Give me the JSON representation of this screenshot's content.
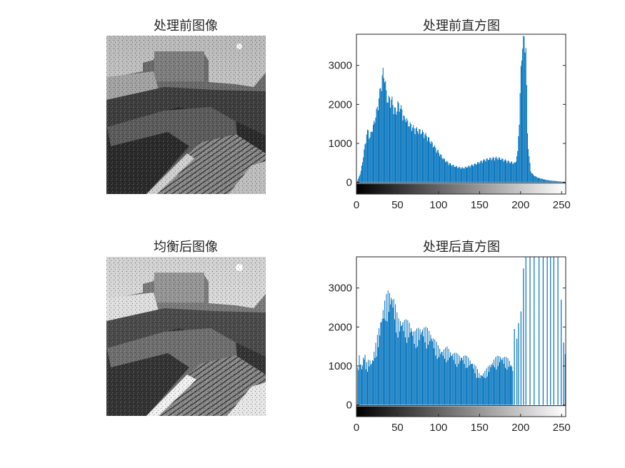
{
  "colors": {
    "bar": "#0072BD",
    "axis": "#262626",
    "background": "#ffffff"
  },
  "panels": {
    "original_image": {
      "title": "处理前图像"
    },
    "equalized_image": {
      "title": "均衡后图像"
    }
  },
  "chart_data": [
    {
      "type": "bar",
      "title": "处理前直方图",
      "xlabel": "",
      "ylabel": "",
      "xlim": [
        0,
        255
      ],
      "ylim": [
        -300,
        3800
      ],
      "xticks": [
        0,
        50,
        100,
        150,
        200,
        250
      ],
      "yticks": [
        0,
        1000,
        2000,
        3000
      ],
      "colorbar": "grayscale",
      "profile": [
        [
          0,
          0
        ],
        [
          2,
          100
        ],
        [
          5,
          300
        ],
        [
          8,
          700
        ],
        [
          10,
          1000
        ],
        [
          12,
          1300
        ],
        [
          14,
          1400
        ],
        [
          16,
          1200
        ],
        [
          18,
          1400
        ],
        [
          20,
          1500
        ],
        [
          22,
          1700
        ],
        [
          25,
          2000
        ],
        [
          28,
          2400
        ],
        [
          30,
          2700
        ],
        [
          32,
          2950
        ],
        [
          34,
          2850
        ],
        [
          36,
          2400
        ],
        [
          38,
          2200
        ],
        [
          40,
          2250
        ],
        [
          43,
          2200
        ],
        [
          45,
          2000
        ],
        [
          48,
          1900
        ],
        [
          50,
          2100
        ],
        [
          52,
          2050
        ],
        [
          55,
          1950
        ],
        [
          58,
          1700
        ],
        [
          60,
          1750
        ],
        [
          62,
          1600
        ],
        [
          65,
          1550
        ],
        [
          70,
          1450
        ],
        [
          75,
          1400
        ],
        [
          80,
          1350
        ],
        [
          85,
          1250
        ],
        [
          90,
          1100
        ],
        [
          95,
          950
        ],
        [
          100,
          800
        ],
        [
          105,
          650
        ],
        [
          110,
          550
        ],
        [
          115,
          480
        ],
        [
          120,
          430
        ],
        [
          125,
          400
        ],
        [
          130,
          390
        ],
        [
          135,
          420
        ],
        [
          140,
          460
        ],
        [
          145,
          500
        ],
        [
          150,
          550
        ],
        [
          155,
          600
        ],
        [
          160,
          630
        ],
        [
          165,
          650
        ],
        [
          170,
          660
        ],
        [
          175,
          640
        ],
        [
          180,
          600
        ],
        [
          185,
          560
        ],
        [
          190,
          530
        ],
        [
          193,
          520
        ],
        [
          196,
          800
        ],
        [
          198,
          1700
        ],
        [
          200,
          3000
        ],
        [
          202,
          3800
        ],
        [
          204,
          3800
        ],
        [
          206,
          3700
        ],
        [
          207,
          2500
        ],
        [
          208,
          1300
        ],
        [
          210,
          700
        ],
        [
          212,
          300
        ],
        [
          215,
          200
        ],
        [
          220,
          130
        ],
        [
          225,
          100
        ],
        [
          230,
          70
        ],
        [
          235,
          50
        ],
        [
          240,
          40
        ],
        [
          245,
          30
        ],
        [
          250,
          20
        ],
        [
          255,
          10
        ]
      ]
    },
    {
      "type": "bar",
      "title": "处理后直方图",
      "xlabel": "",
      "ylabel": "",
      "xlim": [
        0,
        255
      ],
      "ylim": [
        -300,
        3800
      ],
      "xticks": [
        0,
        50,
        100,
        150,
        200,
        250
      ],
      "yticks": [
        0,
        1000,
        2000,
        3000
      ],
      "colorbar": "grayscale",
      "profile": [
        [
          0,
          800
        ],
        [
          3,
          1300
        ],
        [
          6,
          1000
        ],
        [
          9,
          1400
        ],
        [
          12,
          1100
        ],
        [
          15,
          1200
        ],
        [
          18,
          1150
        ],
        [
          20,
          1300
        ],
        [
          22,
          1500
        ],
        [
          25,
          1800
        ],
        [
          28,
          2100
        ],
        [
          30,
          2350
        ],
        [
          32,
          2550
        ],
        [
          35,
          2800
        ],
        [
          38,
          2950
        ],
        [
          40,
          2950
        ],
        [
          42,
          2950
        ],
        [
          45,
          2800
        ],
        [
          48,
          2500
        ],
        [
          50,
          2250
        ],
        [
          55,
          2250
        ],
        [
          60,
          2200
        ],
        [
          65,
          2150
        ],
        [
          70,
          1900
        ],
        [
          75,
          2000
        ],
        [
          80,
          2050
        ],
        [
          85,
          2000
        ],
        [
          90,
          1900
        ],
        [
          95,
          1700
        ],
        [
          100,
          1500
        ],
        [
          105,
          1450
        ],
        [
          110,
          1500
        ],
        [
          115,
          1400
        ],
        [
          120,
          1350
        ],
        [
          125,
          1300
        ],
        [
          130,
          1300
        ],
        [
          135,
          1250
        ],
        [
          140,
          1150
        ],
        [
          145,
          1000
        ],
        [
          150,
          800
        ],
        [
          155,
          850
        ],
        [
          160,
          1000
        ],
        [
          165,
          1150
        ],
        [
          170,
          1250
        ],
        [
          175,
          1300
        ],
        [
          180,
          1250
        ],
        [
          185,
          1200
        ],
        [
          188,
          1100
        ],
        [
          190,
          1000
        ]
      ],
      "sparse_bins": [
        [
          192,
          1950
        ],
        [
          195,
          1700
        ],
        [
          197,
          2100
        ],
        [
          200,
          2400
        ],
        [
          203,
          3500
        ],
        [
          206,
          3800
        ],
        [
          211,
          3800
        ],
        [
          216,
          3800
        ],
        [
          222,
          3800
        ],
        [
          227,
          3800
        ],
        [
          232,
          3800
        ],
        [
          236,
          3800
        ],
        [
          240,
          3800
        ],
        [
          245,
          3800
        ],
        [
          249,
          2700
        ],
        [
          252,
          1600
        ],
        [
          254,
          1300
        ],
        [
          255,
          900
        ]
      ]
    }
  ]
}
